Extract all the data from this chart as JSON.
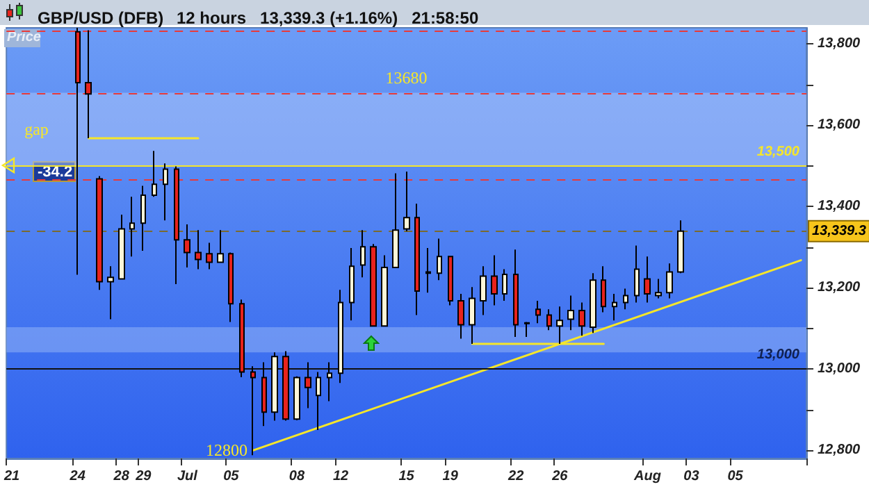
{
  "chart_data": {
    "type": "candlestick",
    "title": "GBP/USD (DFB)",
    "subtitle": "12 hours   13,339.3 (+1.16%)   21:58:50",
    "categories": [
      "21",
      null,
      null,
      null,
      null,
      null,
      "24",
      null,
      null,
      null,
      "28",
      null,
      "29",
      null,
      null,
      null,
      "Jul",
      null,
      null,
      null,
      "05",
      null,
      null,
      null,
      null,
      null,
      "08",
      null,
      null,
      null,
      "12",
      null,
      null,
      null,
      null,
      null,
      "15",
      null,
      null,
      null,
      "19",
      null,
      null,
      null,
      null,
      null,
      "22",
      null,
      null,
      null,
      "26",
      null,
      null,
      null,
      null,
      null,
      null,
      null,
      "Aug",
      null,
      null,
      null,
      "03",
      null,
      null,
      null,
      "05",
      null,
      null,
      null,
      null,
      null,
      null
    ],
    "ohlc": [
      null,
      null,
      null,
      null,
      null,
      null,
      [
        13830,
        13840,
        13232,
        13705
      ],
      [
        13705,
        13834,
        13568,
        13677
      ],
      [
        13468,
        13475,
        13195,
        13215
      ],
      [
        13215,
        13253,
        13123,
        13226
      ],
      [
        13222,
        13380,
        13222,
        13345
      ],
      [
        13345,
        13424,
        13277,
        13359
      ],
      [
        13359,
        13451,
        13291,
        13428
      ],
      [
        13428,
        13537,
        13424,
        13455
      ],
      [
        13455,
        13506,
        13366,
        13492
      ],
      [
        13492,
        13499,
        13209,
        13318
      ],
      [
        13318,
        13356,
        13250,
        13287
      ],
      [
        13287,
        13342,
        13246,
        13270
      ],
      [
        13284,
        13311,
        13246,
        13263
      ],
      [
        13263,
        13342,
        13263,
        13284
      ],
      [
        13284,
        13287,
        13116,
        13161
      ],
      [
        13161,
        13171,
        12980,
        12993
      ],
      [
        12993,
        13007,
        12788,
        12979
      ],
      [
        12979,
        13017,
        12860,
        12894
      ],
      [
        12894,
        13041,
        12873,
        13031
      ],
      [
        13031,
        13044,
        12873,
        12877
      ],
      [
        12877,
        12982,
        12874,
        12979
      ],
      [
        12979,
        13017,
        12904,
        12955
      ],
      [
        12935,
        12993,
        12850,
        12979
      ],
      [
        12979,
        13017,
        12921,
        12990
      ],
      [
        12990,
        13195,
        12966,
        13164
      ],
      [
        13164,
        13298,
        13120,
        13253
      ],
      [
        13256,
        13342,
        13226,
        13301
      ],
      [
        13301,
        13308,
        13106,
        13106
      ],
      [
        13106,
        13280,
        13106,
        13250
      ],
      [
        13250,
        13482,
        13250,
        13342
      ],
      [
        13345,
        13486,
        13339,
        13373
      ],
      [
        13373,
        13407,
        13133,
        13192
      ],
      [
        13239,
        13298,
        13188,
        13236
      ],
      [
        13236,
        13321,
        13219,
        13277
      ],
      [
        13277,
        13277,
        13157,
        13168
      ],
      [
        13168,
        13185,
        13075,
        13109
      ],
      [
        13109,
        13202,
        13062,
        13174
      ],
      [
        13168,
        13253,
        13133,
        13229
      ],
      [
        13229,
        13280,
        13157,
        13185
      ],
      [
        13185,
        13246,
        13168,
        13233
      ],
      [
        13233,
        13294,
        13079,
        13109
      ],
      [
        13114,
        13116,
        13079,
        13112
      ],
      [
        13147,
        13168,
        13113,
        13133
      ],
      [
        13133,
        13147,
        13096,
        13106
      ],
      [
        13106,
        13154,
        13062,
        13120
      ],
      [
        13123,
        13181,
        13096,
        13144
      ],
      [
        13144,
        13164,
        13082,
        13106
      ],
      [
        13103,
        13236,
        13089,
        13219
      ],
      [
        13219,
        13253,
        13140,
        13154
      ],
      [
        13154,
        13185,
        13120,
        13164
      ],
      [
        13164,
        13198,
        13147,
        13181
      ],
      [
        13181,
        13304,
        13164,
        13246
      ],
      [
        13222,
        13277,
        13164,
        13185
      ],
      [
        13181,
        13222,
        13174,
        13188
      ],
      [
        13188,
        13260,
        13174,
        13239
      ],
      [
        13239,
        13366,
        13236,
        13339.3
      ],
      null,
      null,
      null,
      null,
      null,
      null,
      null,
      null,
      null,
      null,
      null
    ],
    "colors": [
      null,
      null,
      null,
      null,
      null,
      null,
      "#e8231c",
      "#e8231c",
      "#e8231c",
      "#fdf6d8",
      "#fdf6d8",
      "#fdf6d8",
      "#fdf6d8",
      "#fdf6d8",
      "#fdf6d8",
      "#e8231c",
      "#e8231c",
      "#e8231c",
      "#e8231c",
      "#fdf6d8",
      "#e8231c",
      "#e8231c",
      "#e8231c",
      "#e8231c",
      "#fdf6d8",
      "#e8231c",
      "#fdf6d8",
      "#e8231c",
      "#fdf6d8",
      "#fdf6d8",
      "#fdf6d8",
      "#fdf6d8",
      "#fdf6d8",
      "#e8231c",
      "#fdf6d8",
      "#fdf6d8",
      "#fdf6d8",
      "#e8231c",
      "#e8231c",
      "#fdf6d8",
      "#e8231c",
      "#e8231c",
      "#fdf6d8",
      "#fdf6d8",
      "#e8231c",
      "#fdf6d8",
      "#e8231c",
      "#e8231c",
      "#e8231c",
      "#e8231c",
      "#fdf6d8",
      "#fdf6d8",
      "#e8231c",
      "#fdf6d8",
      "#e8231c",
      "#fdf6d8",
      "#fdf6d8",
      "#fdf6d8",
      "#e8231c",
      "#fdf6d8",
      "#fdf6d8",
      "#fdf6d8",
      null,
      null,
      null,
      null,
      null,
      null,
      null,
      null,
      null,
      null,
      null
    ],
    "series": [
      {
        "type": "line",
        "color": "#f5e62a",
        "values": [
          null,
          null,
          null,
          null,
          null,
          null,
          null,
          null,
          null,
          null,
          null,
          null,
          null,
          null,
          null,
          null,
          null,
          null,
          null,
          null,
          null,
          null,
          12800,
          null,
          null,
          null,
          null,
          null,
          null,
          null,
          null,
          null,
          null,
          null,
          null,
          null,
          null,
          null,
          null,
          null,
          null,
          null,
          null,
          null,
          null,
          null,
          null,
          null,
          null,
          null,
          null,
          null,
          null,
          null,
          null,
          null,
          null,
          null,
          null,
          null,
          null,
          null,
          null,
          null,
          null,
          null,
          null,
          null,
          null,
          null,
          null,
          null,
          13268
        ],
        "value_labels": [
          null,
          null,
          null,
          null,
          null,
          null,
          null,
          null,
          null,
          null,
          null,
          null,
          null,
          null,
          null,
          null,
          null,
          null,
          null,
          null,
          null,
          null,
          "12800",
          null,
          null,
          null,
          null,
          null,
          null,
          null,
          null,
          null,
          null,
          null,
          null,
          null,
          null,
          null,
          null,
          null,
          null,
          null,
          null,
          null,
          null,
          null,
          null,
          null,
          null,
          null,
          null,
          null,
          null,
          null,
          null,
          null,
          null,
          null,
          null,
          null,
          null,
          null,
          null,
          null,
          null,
          null,
          null,
          null,
          null,
          null,
          null,
          null,
          null
        ]
      },
      {
        "type": "line",
        "color": "#f5e62a",
        "values": [
          null,
          null,
          null,
          null,
          null,
          null,
          null,
          13568,
          null,
          null,
          null,
          null,
          null,
          null,
          null,
          null,
          null,
          13568,
          null,
          null,
          null,
          null,
          null,
          null,
          null,
          null,
          null,
          null,
          null,
          null,
          null,
          null,
          null,
          null,
          null,
          null,
          null,
          null,
          null,
          null,
          null,
          null,
          null,
          null,
          null,
          null,
          null,
          null,
          null,
          null,
          null,
          null,
          null,
          null,
          null,
          null,
          null,
          null,
          null,
          null,
          null,
          null,
          null,
          null,
          null,
          null,
          null,
          null,
          null,
          null,
          null,
          null,
          null
        ]
      },
      {
        "type": "line",
        "color": "#f5e62a",
        "values": [
          null,
          null,
          null,
          null,
          null,
          null,
          null,
          null,
          null,
          null,
          null,
          null,
          null,
          null,
          null,
          null,
          null,
          null,
          null,
          null,
          null,
          null,
          null,
          null,
          null,
          null,
          null,
          null,
          null,
          null,
          null,
          null,
          null,
          null,
          null,
          null,
          null,
          null,
          null,
          null,
          null,
          null,
          13062,
          null,
          null,
          null,
          null,
          null,
          null,
          null,
          null,
          null,
          null,
          null,
          13062,
          null,
          null,
          null,
          null,
          null,
          null,
          null,
          null,
          null,
          null,
          null,
          null,
          null,
          null,
          null,
          null,
          null,
          null
        ]
      }
    ],
    "ylim": [
      12780,
      13840
    ],
    "yticks": [
      {
        "value": 12800,
        "label": "12,800"
      },
      {
        "value": 12900,
        "label": null
      },
      {
        "value": 13000,
        "label": "13,000"
      },
      {
        "value": 13100,
        "label": null
      },
      {
        "value": 13200,
        "label": "13,200"
      },
      {
        "value": 13300,
        "label": null
      },
      {
        "value": 13400,
        "label": "13,400"
      },
      {
        "value": 13500,
        "label": null
      },
      {
        "value": 13600,
        "label": "13,600"
      },
      {
        "value": 13700,
        "label": null
      },
      {
        "value": 13800,
        "label": "13,800"
      }
    ],
    "ref_lines": [
      {
        "axis": "y",
        "value": 13834,
        "label": null,
        "color": "#e83a3a",
        "line_style": "dashed"
      },
      {
        "axis": "y",
        "value": 13680,
        "label": "13680",
        "color": "#e83a3a",
        "line_style": "dashed"
      },
      {
        "axis": "y",
        "value": 13468,
        "label": null,
        "color": "#e83a3a",
        "line_style": "dashed"
      },
      {
        "axis": "y",
        "value": 13500,
        "label": "13,500",
        "color": "#f5e62a",
        "line_style": "solid"
      },
      {
        "axis": "y",
        "value": 13339.3,
        "label": "13,339.3",
        "color": "#7a6a30",
        "line_style": "dashed"
      },
      {
        "axis": "y",
        "value": 13000,
        "label": "13,000",
        "color": "#111111",
        "line_style": "solid"
      }
    ],
    "bands": [
      {
        "axis": "y",
        "from": 13500,
        "to": 13680,
        "label": "gap",
        "color": "#a9c3f7"
      },
      {
        "axis": "y",
        "from": 13041,
        "to": 13103,
        "label": null,
        "color": "#8fb0f6"
      }
    ],
    "annotations": [
      "Price",
      {
        "text": "-34.2",
        "y": 13486
      }
    ],
    "grid": false,
    "marker": "none"
  }
}
